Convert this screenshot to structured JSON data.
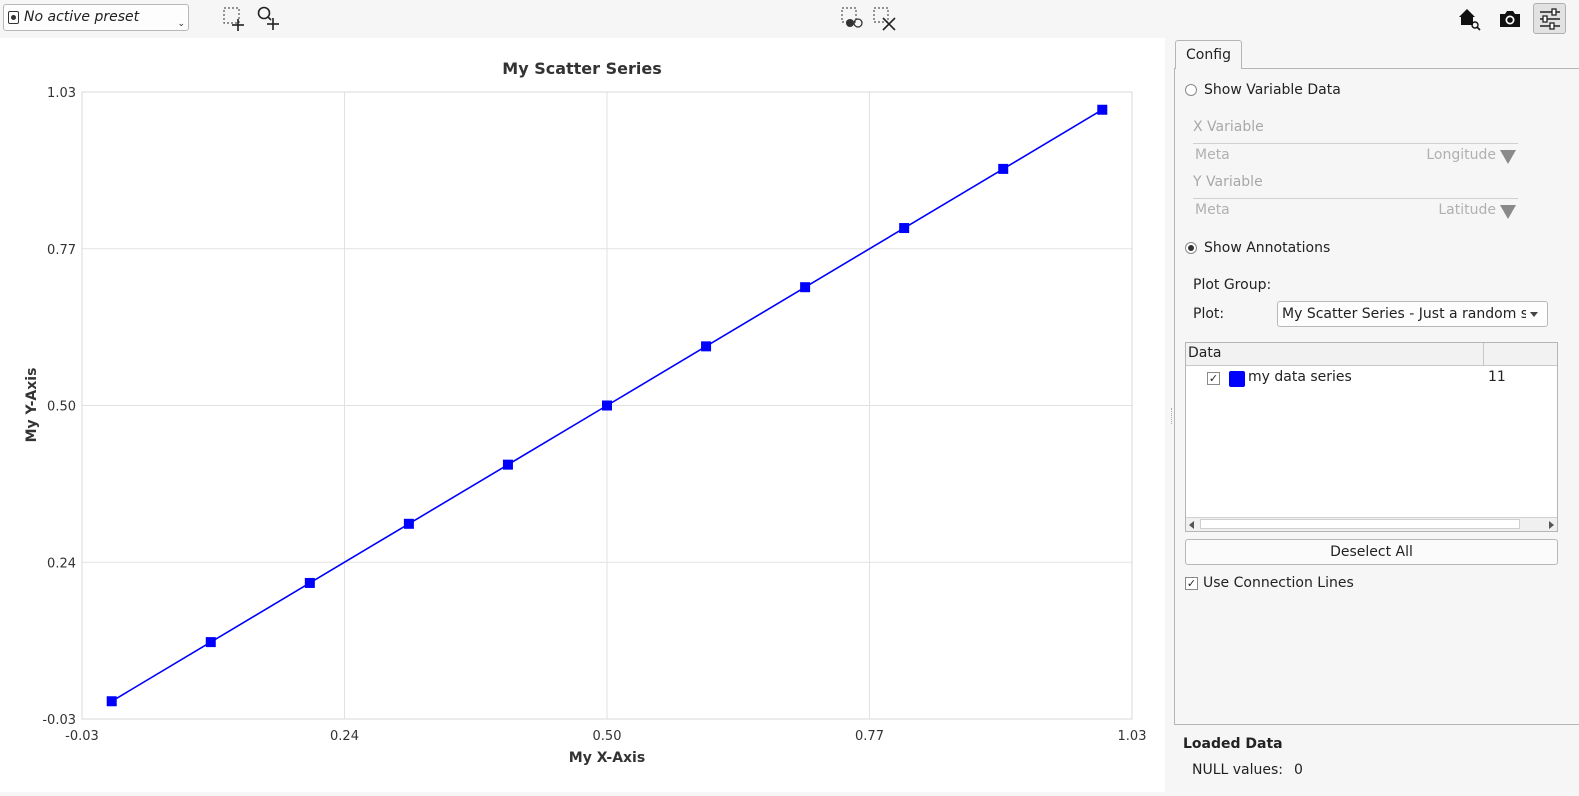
{
  "toolbar": {
    "preset": "No active preset",
    "icons": [
      "rect-select-add-icon",
      "zoom-in-icon",
      "select-points-icon",
      "clear-selection-icon",
      "home-zoom-icon",
      "camera-icon",
      "settings-sliders-icon"
    ]
  },
  "chart_data": {
    "type": "scatter",
    "title": "My Scatter Series",
    "xlabel": "My X-Axis",
    "ylabel": "My Y-Axis",
    "xlim": [
      -0.03,
      1.03
    ],
    "ylim": [
      -0.03,
      1.03
    ],
    "xticks": [
      "-0.03",
      "0.24",
      "0.50",
      "0.77",
      "1.03"
    ],
    "yticks": [
      "-0.03",
      "0.24",
      "0.50",
      "0.77",
      "1.03"
    ],
    "grid": true,
    "connection_lines": true,
    "series": [
      {
        "name": "my data series",
        "color": "#0000ff",
        "marker": "square",
        "x": [
          0.0,
          0.1,
          0.2,
          0.3,
          0.4,
          0.5,
          0.6,
          0.7,
          0.8,
          0.9,
          1.0
        ],
        "y": [
          0.0,
          0.1,
          0.2,
          0.3,
          0.4,
          0.5,
          0.6,
          0.7,
          0.8,
          0.9,
          1.0
        ]
      }
    ]
  },
  "config": {
    "tab": "Config",
    "show_variable_data": "Show Variable Data",
    "x_variable_label": "X Variable",
    "x_variable_group": "Meta",
    "x_variable_value": "Longitude",
    "y_variable_label": "Y Variable",
    "y_variable_group": "Meta",
    "y_variable_value": "Latitude",
    "show_annotations": "Show Annotations",
    "plot_group_label": "Plot Group:",
    "plot_label": "Plot:",
    "plot_value": "My Scatter Series - Just a random scatter",
    "data_header": "Data",
    "data_rows": [
      {
        "name": "my data series",
        "count": "11",
        "checked": true,
        "color": "#0000ff"
      }
    ],
    "deselect_all": "Deselect All",
    "use_connection_lines": "Use Connection Lines"
  },
  "loaded_data": {
    "title": "Loaded Data",
    "null_values_label": "NULL values:",
    "null_values": "0"
  }
}
